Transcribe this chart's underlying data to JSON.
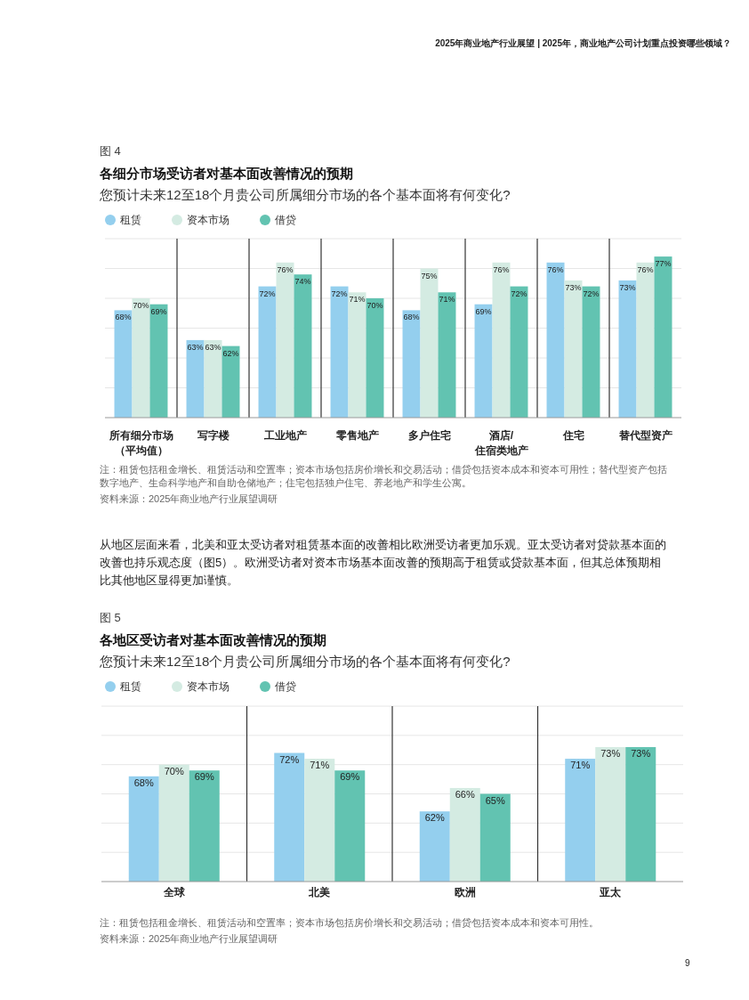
{
  "chart_data": [
    {
      "type": "bar",
      "title": "各细分市场受访者对基本面改善情况的预期",
      "subtitle": "您预计未来12至18个月贵公司所属细分市场的各个基本面将有何变化?",
      "annotations": [
        "2025年商业地产行业展望 | 2025年，商业地产公司计划重点投资哪些领域？",
        "图 4",
        "注：租赁包括租金增长、租赁活动和空置率；资本市场包括房价增长和交易活动；借贷包括资本成本和资本可用性；替代型资产包括数字地产、生命科学地产和自助仓储地产；住宅包括独户住宅、养老地产和学生公寓。",
        "资料来源：2025年商业地产行业展望调研"
      ],
      "categories": [
        "所有细分市场（平均值）",
        "写字楼",
        "工业地产",
        "零售地产",
        "多户住宅",
        "酒店/住宿类地产",
        "住宅",
        "替代型资产"
      ],
      "series": [
        {
          "name": "租赁",
          "color": "#94cfee",
          "values": [
            68,
            63,
            72,
            72,
            68,
            69,
            76,
            73
          ],
          "value_labels": [
            "68%",
            "63%",
            "72%",
            "72%",
            "68%",
            "69%",
            "76%",
            "73%"
          ]
        },
        {
          "name": "资本市场",
          "color": "#d4ebe2",
          "values": [
            70,
            63,
            76,
            71,
            75,
            76,
            73,
            76
          ],
          "value_labels": [
            "70%",
            "63%",
            "76%",
            "71%",
            "75%",
            "76%",
            "73%",
            "76%"
          ]
        },
        {
          "name": "借贷",
          "color": "#62c3b1",
          "values": [
            69,
            62,
            74,
            70,
            71,
            72,
            72,
            77
          ],
          "value_labels": [
            "69%",
            "62%",
            "74%",
            "70%",
            "71%",
            "72%",
            "72%",
            "77%"
          ]
        }
      ],
      "ylim": [
        50,
        80
      ],
      "yticks": [
        {
          "value": 50,
          "label": null
        },
        {
          "value": 55,
          "label": null
        },
        {
          "value": 60,
          "label": null
        },
        {
          "value": 65,
          "label": null
        },
        {
          "value": 70,
          "label": null
        },
        {
          "value": 75,
          "label": null
        },
        {
          "value": 80,
          "label": null
        }
      ],
      "grid": true,
      "legend": "top left",
      "tick_labels": "x"
    },
    {
      "type": "bar",
      "title": "各地区受访者对基本面改善情况的预期",
      "subtitle": "您预计未来12至18个月贵公司所属细分市场的各个基本面将有何变化?",
      "annotations": [
        "从地区层面来看，北美和亚太受访者对租赁基本面的改善相比欧洲受访者更加乐观。亚太受访者对贷款基本面的改善也持乐观态度（图5）。欧洲受访者对资本市场基本面改善的预期高于租赁或贷款基本面，但其总体预期相比其他地区显得更加谨慎。",
        "图 5",
        "注：租赁包括租金增长、租赁活动和空置率；资本市场包括房价增长和交易活动；借贷包括资本成本和资本可用性。",
        "资料来源：2025年商业地产行业展望调研",
        "9"
      ],
      "categories": [
        "全球",
        "北美",
        "欧洲",
        "亚太"
      ],
      "series": [
        {
          "name": "租赁",
          "color": "#94cfee",
          "values": [
            68,
            72,
            62,
            71
          ],
          "value_labels": [
            "68%",
            "72%",
            "62%",
            "71%"
          ]
        },
        {
          "name": "资本市场",
          "color": "#d4ebe2",
          "values": [
            70,
            71,
            66,
            73
          ],
          "value_labels": [
            "70%",
            "71%",
            "66%",
            "73%"
          ]
        },
        {
          "name": "借贷",
          "color": "#62c3b1",
          "values": [
            69,
            69,
            65,
            73
          ],
          "value_labels": [
            "69%",
            "69%",
            "65%",
            "73%"
          ]
        }
      ],
      "ylim": [
        50,
        80
      ],
      "yticks": [
        {
          "value": 50,
          "label": null
        },
        {
          "value": 55,
          "label": null
        },
        {
          "value": 60,
          "label": null
        },
        {
          "value": 65,
          "label": null
        },
        {
          "value": 70,
          "label": null
        },
        {
          "value": 75,
          "label": null
        },
        {
          "value": 80,
          "label": null
        }
      ],
      "grid": true,
      "legend": "top left",
      "tick_labels": "x"
    }
  ]
}
